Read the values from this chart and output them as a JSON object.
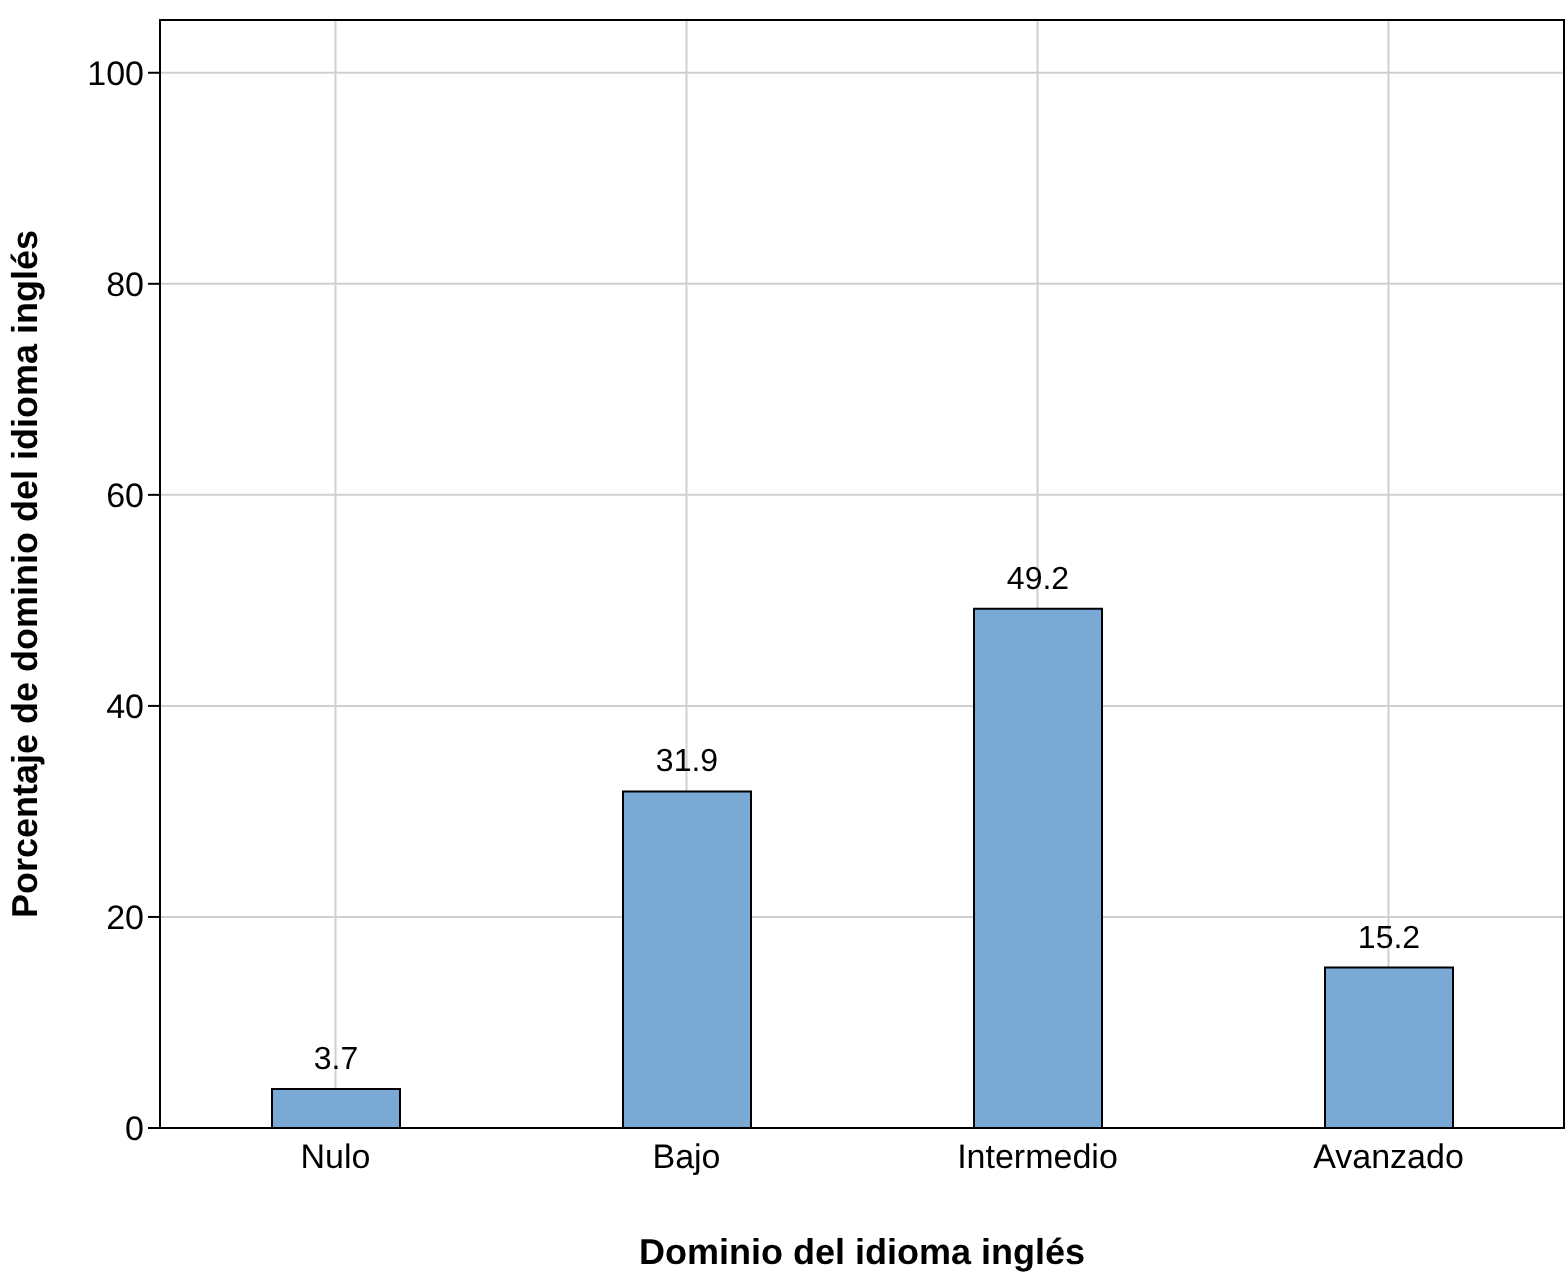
{
  "chart_data": {
    "type": "bar",
    "xlabel": "Dominio del idioma inglés",
    "ylabel": "Porcentaje de dominio del idioma inglés",
    "categories": [
      "Nulo",
      "Bajo",
      "Intermedio",
      "Avanzado"
    ],
    "values": [
      3.7,
      31.9,
      49.2,
      15.2
    ],
    "color": "#7aa9d6",
    "ylim": [
      0,
      105
    ],
    "yticks": [
      0,
      20,
      40,
      60,
      80,
      100
    ],
    "grid": true,
    "data_labels": true
  }
}
